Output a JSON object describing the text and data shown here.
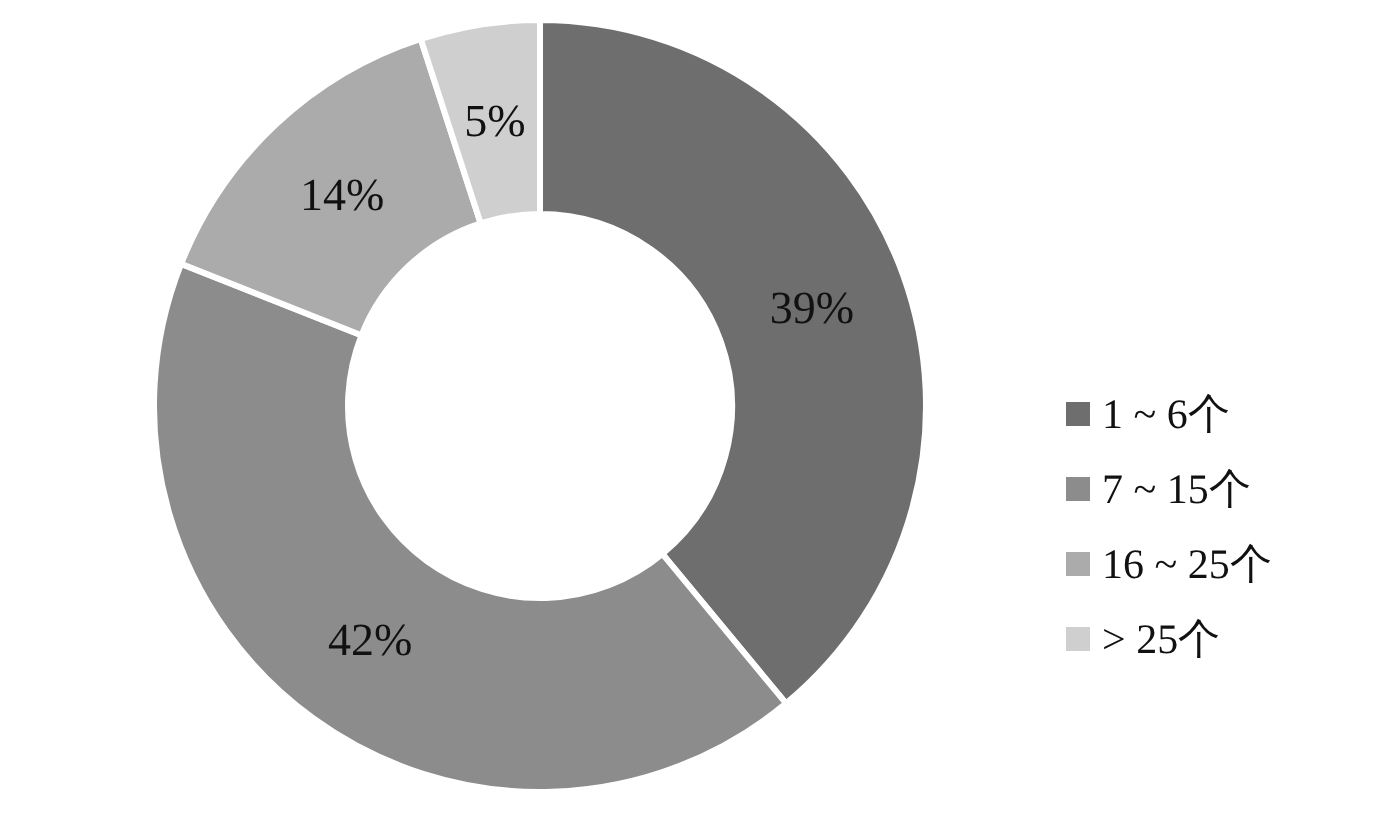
{
  "chart_data": {
    "type": "donut",
    "categories": [
      "1 ~ 6个",
      "7 ~ 15个",
      "16 ~ 25个",
      "> 25个"
    ],
    "values": [
      39,
      42,
      14,
      5
    ],
    "colors": [
      "#6e6e6e",
      "#8c8c8c",
      "#ababab",
      "#cfcfcf"
    ],
    "value_labels": [
      "39%",
      "42%",
      "14%",
      "5%"
    ],
    "legend": "right"
  }
}
